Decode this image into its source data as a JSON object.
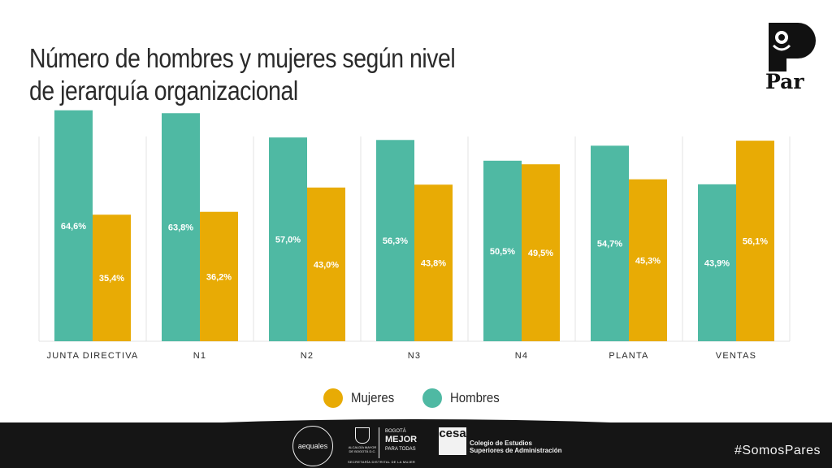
{
  "title_line1": "Número de hombres y mujeres según nivel",
  "title_line2": "de jerarquía organizacional",
  "brand": {
    "name": "Par"
  },
  "colors": {
    "hombres": "#4fb9a3",
    "mujeres": "#e8ab05",
    "grid": "#e3e3e3",
    "label_text": "#ffffff"
  },
  "chart_data": {
    "type": "bar",
    "categories": [
      "JUNTA DIRECTIVA",
      "N1",
      "N2",
      "N3",
      "N4",
      "PLANTA",
      "VENTAS"
    ],
    "series": [
      {
        "name": "Hombres",
        "values": [
          64.6,
          63.8,
          57.0,
          56.3,
          50.5,
          54.7,
          43.9
        ],
        "labels": [
          "64,6%",
          "63,8%",
          "57,0%",
          "56,3%",
          "50,5%",
          "54,7%",
          "43,9%"
        ]
      },
      {
        "name": "Mujeres",
        "values": [
          35.4,
          36.2,
          43.0,
          43.8,
          49.5,
          45.3,
          56.1
        ],
        "labels": [
          "35,4%",
          "36,2%",
          "43,0%",
          "43,8%",
          "49,5%",
          "45,3%",
          "56,1%"
        ]
      }
    ],
    "ylim": [
      0,
      70
    ],
    "grid": "vertical separators",
    "legend": {
      "placement": "bottom",
      "entries": [
        "Mujeres",
        "Hombres"
      ]
    }
  },
  "footer": {
    "partners": [
      "aequales",
      "ALCALDÍA MAYOR DE BOGOTÁ D.C.",
      "BOGOTÁ",
      "MEJOR",
      "PARA TODAS",
      "cesa",
      "Colegio de Estudios",
      "Superiores de Administración"
    ],
    "secretaria": "SECRETARÍA DISTRITAL DE LA MUJER",
    "hashtag": "#SomosPares"
  }
}
